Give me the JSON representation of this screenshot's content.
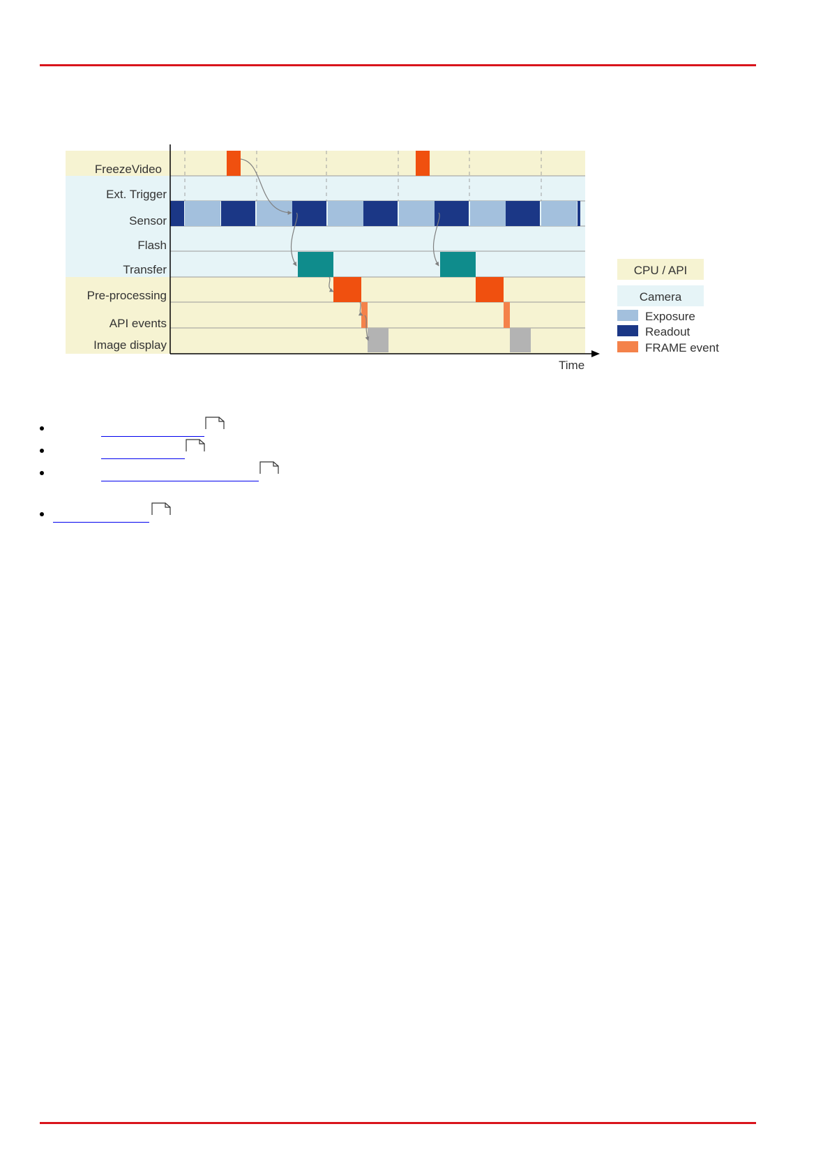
{
  "header": {
    "rule_color": "#d9141c"
  },
  "diagram": {
    "rows": [
      {
        "label": "FreezeVideo",
        "band": "cpu"
      },
      {
        "label": "Ext. Trigger",
        "band": "camera"
      },
      {
        "label": "Sensor",
        "band": "camera"
      },
      {
        "label": "Flash",
        "band": "camera"
      },
      {
        "label": "Transfer",
        "band": "camera"
      },
      {
        "label": "Pre-processing",
        "band": "cpu"
      },
      {
        "label": "API events",
        "band": "cpu"
      },
      {
        "label": "Image display",
        "band": "cpu"
      }
    ],
    "time_label": "Time",
    "legend": {
      "cpu": "CPU / API",
      "camera": "Camera",
      "exposure": "Exposure",
      "readout": "Readout",
      "frame_event": "FRAME event"
    },
    "colors": {
      "cpu_band": "#f6f3d2",
      "camera_band": "#e6f4f7",
      "exposure": "#a3c0dd",
      "readout": "#1b3786",
      "freeze": "#f0500f",
      "transfer": "#0f8c8c",
      "preprocessing": "#f0500f",
      "frame_event": "#f4824a",
      "display": "#b3b3b3"
    }
  },
  "links": [
    {
      "text": ""
    },
    {
      "text": ""
    },
    {
      "text": ""
    },
    {
      "text": ""
    }
  ]
}
